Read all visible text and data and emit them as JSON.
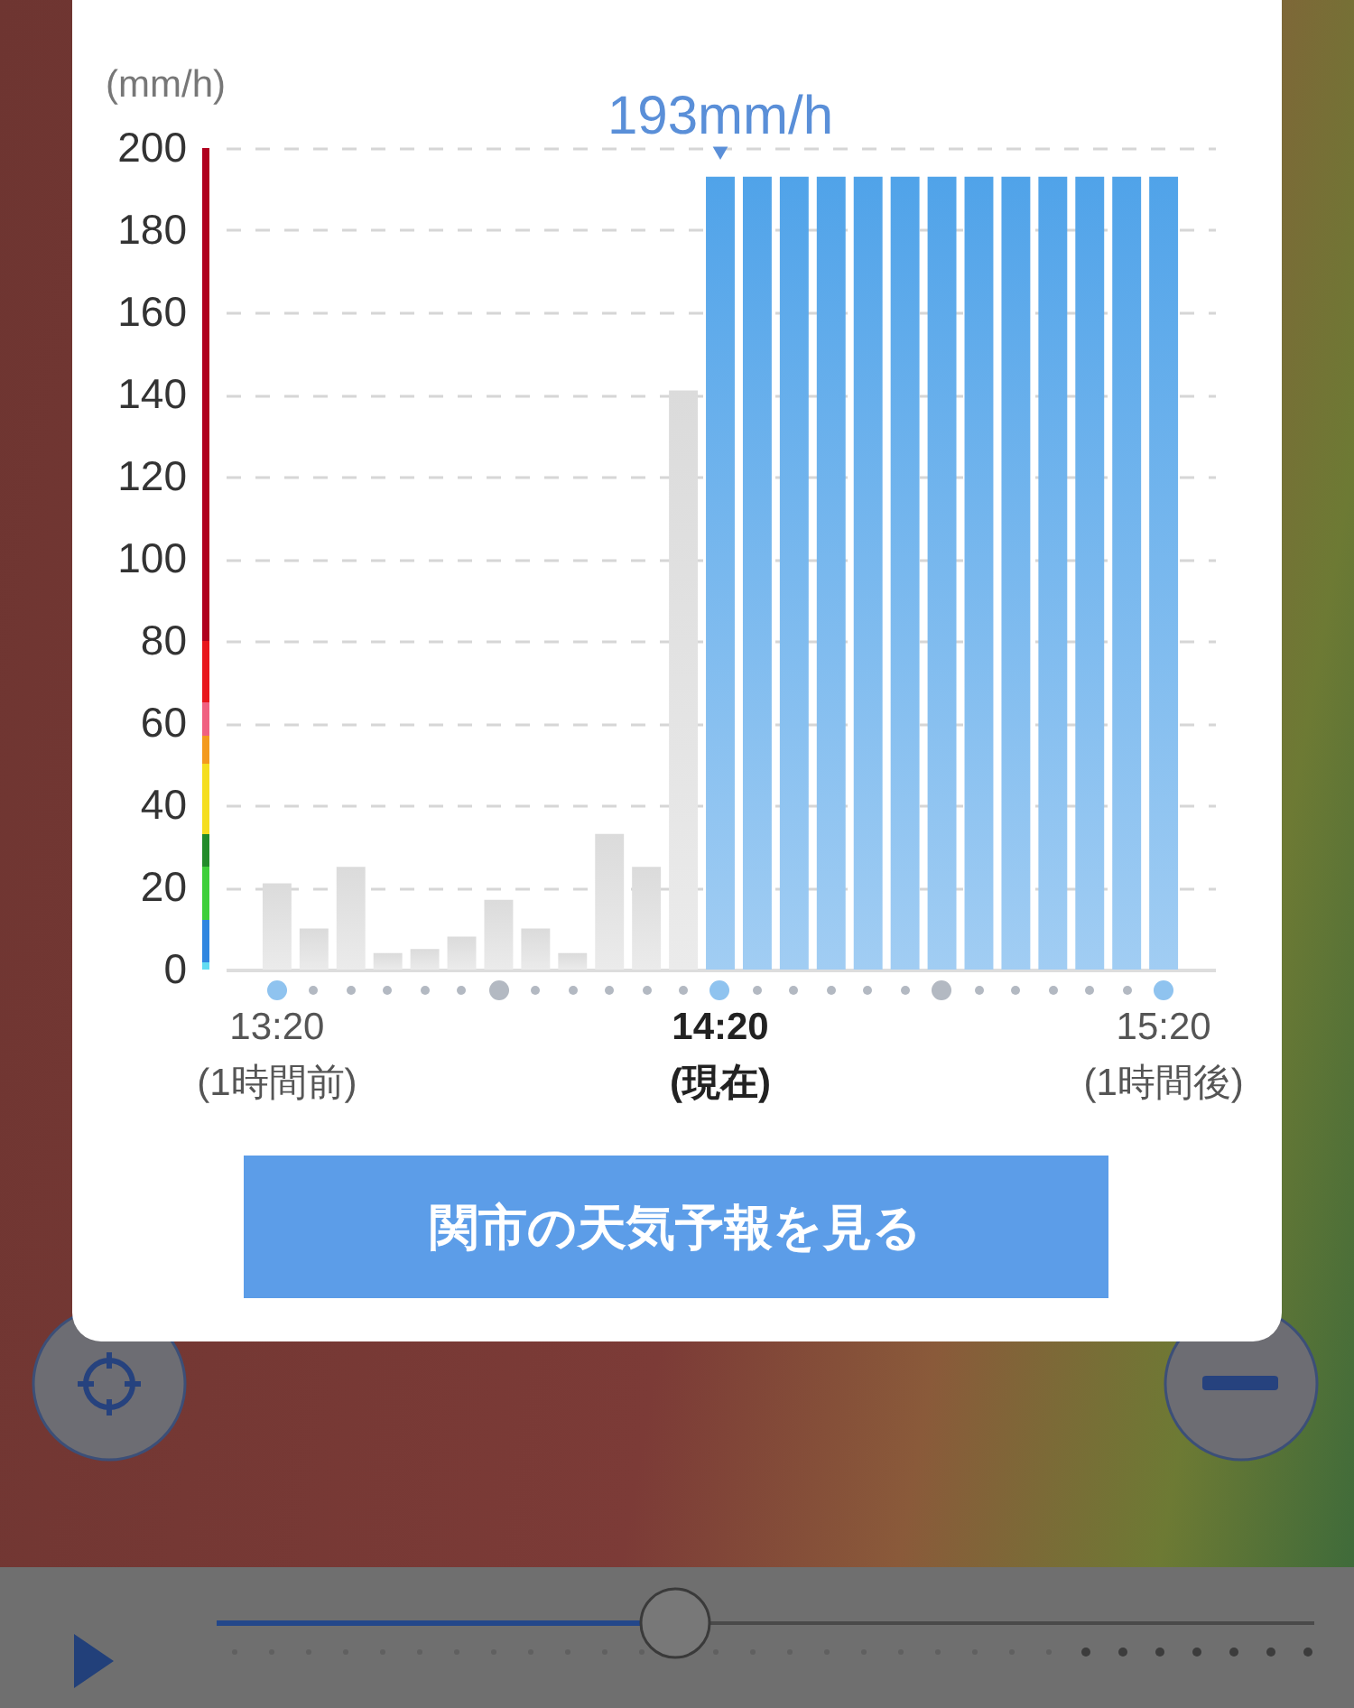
{
  "chart_data": {
    "type": "bar",
    "ylabel": "(mm/h)",
    "categories": [
      "13:20\n(1時間前)",
      null,
      null,
      null,
      null,
      null,
      null,
      null,
      null,
      null,
      null,
      null,
      "14:20\n(現在)",
      null,
      null,
      null,
      null,
      null,
      null,
      null,
      null,
      null,
      null,
      null,
      "15:20\n(1時間後)"
    ],
    "values": [
      21,
      10,
      25,
      4,
      5,
      8,
      17,
      10,
      4,
      33,
      25,
      141,
      193,
      193,
      193,
      193,
      193,
      193,
      193,
      193,
      193,
      193,
      193,
      193,
      193
    ],
    "colors": [
      "#e3e3e3",
      "#e3e3e3",
      "#e3e3e3",
      "#e3e3e3",
      "#e3e3e3",
      "#e3e3e3",
      "#e3e3e3",
      "#e3e3e3",
      "#e3e3e3",
      "#e3e3e3",
      "#e3e3e3",
      "#e3e3e3",
      "#78b8ee",
      "#78b8ee",
      "#78b8ee",
      "#78b8ee",
      "#78b8ee",
      "#78b8ee",
      "#78b8ee",
      "#78b8ee",
      "#78b8ee",
      "#78b8ee",
      "#78b8ee",
      "#78b8ee",
      "#78b8ee"
    ],
    "ylim": [
      0,
      200
    ],
    "yticks": [
      0,
      20,
      40,
      60,
      80,
      100,
      120,
      140,
      160,
      180,
      200
    ],
    "grid": "y",
    "annotations": [
      {
        "text": "193mm/h",
        "x": "14:20\n(現在)",
        "y": 193
      },
      "関市の天気予報を見る"
    ]
  }
}
